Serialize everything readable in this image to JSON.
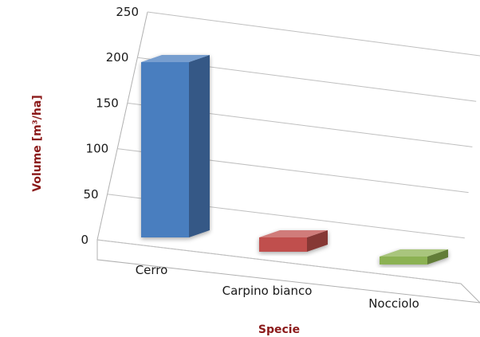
{
  "chart_data": {
    "type": "bar",
    "categories": [
      "Cerro",
      "Carpino bianco",
      "Nocciolo"
    ],
    "values": [
      220,
      18,
      10
    ],
    "xlabel": "Specie",
    "ylabel": "Volume [m³/ha]",
    "ylim": [
      0,
      250
    ],
    "yticks": [
      0,
      50,
      100,
      150,
      200,
      250
    ],
    "grid": true,
    "legend": "none",
    "colors": {
      "bars": [
        "#4a7ebf",
        "#c0504d",
        "#8cb252"
      ],
      "axis_title": "#8b1a1a",
      "gridline": "#bfbfbf"
    }
  }
}
